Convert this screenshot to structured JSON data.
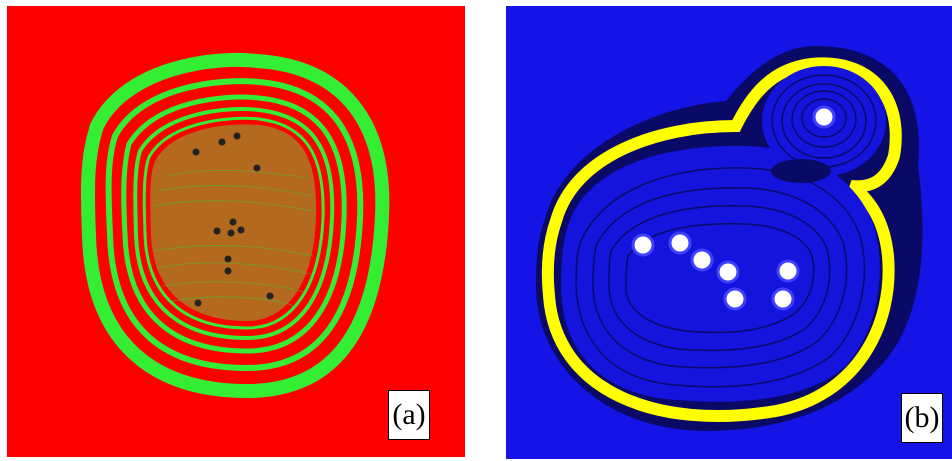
{
  "panels": [
    {
      "label": "(a)",
      "colors": {
        "background": "#ff0000",
        "rings": "#33ee33",
        "interior": "#b36a1f",
        "dots": "#222222"
      }
    },
    {
      "label": "(b)",
      "colors": {
        "background": "#1414e6",
        "dark": "#0a0a66",
        "contour": "#ffff00",
        "center": "#ffffff"
      }
    }
  ]
}
